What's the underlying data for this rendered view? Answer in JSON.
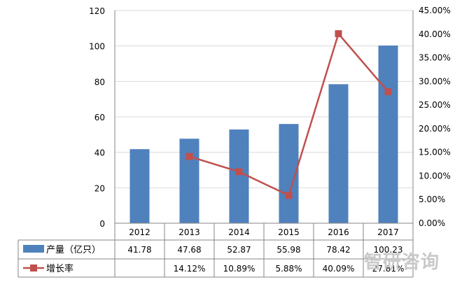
{
  "chart_data": {
    "type": "bar+line",
    "categories": [
      "2012",
      "2013",
      "2014",
      "2015",
      "2016",
      "2017"
    ],
    "series": [
      {
        "name": "产量（亿只）",
        "type": "bar",
        "axis": "left",
        "values": [
          41.78,
          47.68,
          52.87,
          55.98,
          78.42,
          100.23
        ],
        "table_labels": [
          "41.78",
          "47.68",
          "52.87",
          "55.98",
          "78.42",
          "100.23"
        ],
        "color": "#4F81BD"
      },
      {
        "name": "增长率",
        "type": "line",
        "axis": "right",
        "values": [
          null,
          14.12,
          10.89,
          5.88,
          40.09,
          27.81
        ],
        "table_labels": [
          "",
          "14.12%",
          "10.89%",
          "5.88%",
          "40.09%",
          "27.81%"
        ],
        "color": "#C0504D"
      }
    ],
    "y_left": {
      "ylim": [
        0,
        120
      ],
      "ticks": [
        "0",
        "20",
        "40",
        "60",
        "80",
        "100",
        "120"
      ]
    },
    "y_right": {
      "ylim": [
        0,
        45
      ],
      "ticks": [
        "0.00%",
        "5.00%",
        "10.00%",
        "15.00%",
        "20.00%",
        "25.00%",
        "30.00%",
        "35.00%",
        "40.00%",
        "45.00%"
      ]
    },
    "grid": "horizontal",
    "legend": "data-table"
  },
  "watermark": "智研咨询"
}
